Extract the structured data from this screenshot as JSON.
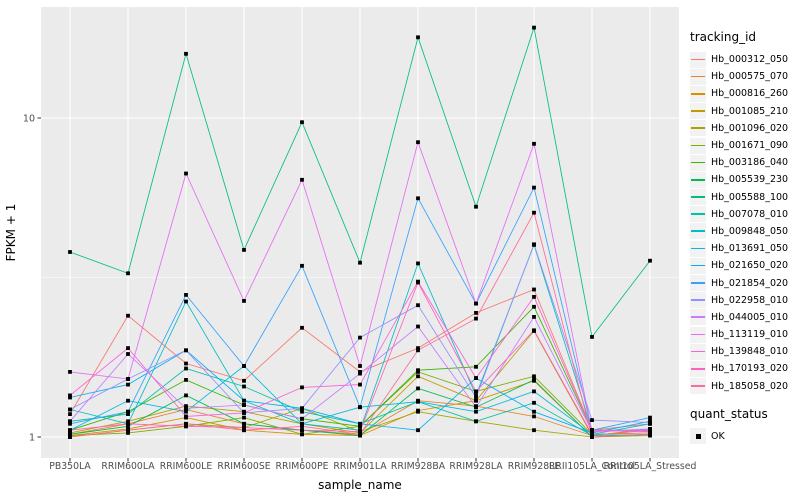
{
  "figure": {
    "y_axis_title": "FPKM + 1",
    "x_axis_title": "sample_name",
    "legend": {
      "tracking_title": "tracking_id",
      "quant_title": "quant_status",
      "quant_items": [
        {
          "label": "OK",
          "marker": "black-square"
        }
      ]
    },
    "colors": {
      "panel_bg": "#EBEBEB",
      "grid": "#FFFFFF",
      "tick": "#333333",
      "tick_label": "#4D4D4D",
      "axis_title": "#000000",
      "marker": "#000000",
      "legend_key_bg": "#F2F2F2"
    }
  },
  "chart_data": {
    "type": "line",
    "title": "",
    "xlabel": "sample_name",
    "ylabel": "FPKM + 1",
    "x_type": "categorical",
    "y_scale": "log10",
    "ylim": [
      0.86,
      22.5
    ],
    "y_ticks": [
      {
        "label": "1",
        "value": 1
      },
      {
        "label": "10",
        "value": 10
      }
    ],
    "y_minor_ticks": [
      3.1623
    ],
    "grid": "major-white-on-gray",
    "legend_position": "right",
    "point_marker": "black-square",
    "categories": [
      "PB350LA",
      "RRIM600LA",
      "RRIM600LE",
      "RRIM600SE",
      "RRIM600PE",
      "RRIM901LA",
      "RRIM928BA",
      "RRIM928LA",
      "RRIM928LE",
      "RRII105LA_Control",
      "RRII105LA_Stressed"
    ],
    "series": [
      {
        "name": "Hb_000312_050",
        "color": "#F8766D",
        "values": [
          1.18,
          2.4,
          1.7,
          1.5,
          2.2,
          1.6,
          1.9,
          2.45,
          2.9,
          1.05,
          1.1
        ]
      },
      {
        "name": "Hb_000575_070",
        "color": "#EA8331",
        "values": [
          1.02,
          1.1,
          1.22,
          1.1,
          1.05,
          1.02,
          1.3,
          1.25,
          1.16,
          1.01,
          1.05
        ]
      },
      {
        "name": "Hb_000816_260",
        "color": "#D89000",
        "values": [
          1.01,
          1.06,
          1.15,
          1.05,
          1.02,
          1.01,
          1.21,
          1.3,
          1.5,
          1.0,
          1.02
        ]
      },
      {
        "name": "Hb_001085_210",
        "color": "#C09B00",
        "values": [
          1.03,
          1.12,
          1.25,
          1.2,
          1.1,
          1.03,
          1.55,
          1.3,
          2.15,
          1.01,
          1.06
        ]
      },
      {
        "name": "Hb_001096_020",
        "color": "#A3A500",
        "values": [
          1.0,
          1.05,
          1.1,
          1.07,
          1.23,
          1.04,
          1.2,
          1.12,
          1.05,
          1.0,
          1.01
        ]
      },
      {
        "name": "Hb_001671_090",
        "color": "#7CAE00",
        "values": [
          1.01,
          1.03,
          1.08,
          1.15,
          1.02,
          1.08,
          1.6,
          1.39,
          1.55,
          1.02,
          1.03
        ]
      },
      {
        "name": "Hb_003186_040",
        "color": "#39B600",
        "values": [
          1.05,
          1.2,
          1.51,
          1.26,
          1.14,
          1.08,
          1.62,
          1.66,
          2.56,
          1.05,
          1.05
        ]
      },
      {
        "name": "Hb_005539_230",
        "color": "#00BB4E",
        "values": [
          1.02,
          1.08,
          1.35,
          1.1,
          1.05,
          1.01,
          1.42,
          1.24,
          1.51,
          1.0,
          1.02
        ]
      },
      {
        "name": "Hb_005588_100",
        "color": "#00BF7D",
        "values": [
          3.8,
          3.26,
          15.9,
          3.86,
          9.7,
          3.52,
          17.9,
          5.27,
          19.2,
          2.06,
          3.57
        ]
      },
      {
        "name": "Hb_007078_010",
        "color": "#00C1A3",
        "values": [
          1.12,
          1.18,
          1.64,
          1.44,
          1.2,
          1.1,
          1.29,
          1.12,
          1.28,
          1.01,
          1.02
        ]
      },
      {
        "name": "Hb_009848_050",
        "color": "#00BFC4",
        "values": [
          1.22,
          1.1,
          2.66,
          1.3,
          1.1,
          1.05,
          3.5,
          1.35,
          4.0,
          1.05,
          1.04
        ]
      },
      {
        "name": "Hb_013691_050",
        "color": "#00BAE0",
        "values": [
          1.05,
          1.3,
          1.2,
          1.67,
          1.1,
          1.24,
          1.29,
          1.2,
          1.39,
          1.02,
          1.1
        ]
      },
      {
        "name": "Hb_021650_020",
        "color": "#00B0F6",
        "values": [
          1.33,
          1.46,
          1.87,
          1.3,
          1.23,
          1.1,
          1.05,
          1.53,
          1.2,
          1.03,
          1.12
        ]
      },
      {
        "name": "Hb_021854_020",
        "color": "#35A2FF",
        "values": [
          1.1,
          1.2,
          2.79,
          1.67,
          3.44,
          1.24,
          5.6,
          2.62,
          6.05,
          1.05,
          1.15
        ]
      },
      {
        "name": "Hb_022958_010",
        "color": "#9590FF",
        "values": [
          1.22,
          1.52,
          1.87,
          1.19,
          1.23,
          2.05,
          2.59,
          1.33,
          4.02,
          1.13,
          1.11
        ]
      },
      {
        "name": "Hb_044005_010",
        "color": "#C77CFF",
        "values": [
          1.12,
          1.82,
          1.23,
          1.26,
          1.14,
          1.58,
          2.22,
          1.24,
          2.38,
          1.04,
          1.06
        ]
      },
      {
        "name": "Hb_113119_010",
        "color": "#E76BF3",
        "values": [
          1.6,
          1.52,
          6.7,
          2.67,
          6.4,
          1.67,
          8.4,
          2.62,
          8.3,
          1.04,
          1.05
        ]
      },
      {
        "name": "Hb_139848_010",
        "color": "#FA62DB",
        "values": [
          1.35,
          1.9,
          1.16,
          1.19,
          1.43,
          1.46,
          3.07,
          1.53,
          2.75,
          1.05,
          1.04
        ]
      },
      {
        "name": "Hb_170193_020",
        "color": "#FF62BC",
        "values": [
          1.05,
          1.1,
          1.08,
          1.07,
          1.05,
          1.04,
          3.05,
          1.39,
          2.16,
          1.02,
          1.03
        ]
      },
      {
        "name": "Hb_185058_020",
        "color": "#FF6A98",
        "values": [
          1.0,
          1.05,
          1.1,
          1.05,
          1.08,
          1.02,
          1.87,
          2.35,
          5.05,
          1.0,
          1.02
        ]
      }
    ]
  }
}
